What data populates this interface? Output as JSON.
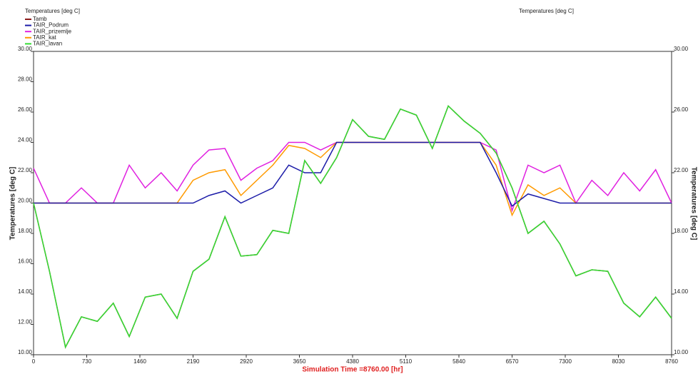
{
  "chart_data": {
    "type": "line",
    "title": "Temperatures  [deg C]",
    "title_right": "Temperatures  [deg C]",
    "y_label": "Temperatures  [deg C]",
    "y2_label": "Temperatures  [deg C]",
    "x_label": "Simulation Time =8760.00 [hr]",
    "xlim": [
      0,
      8760
    ],
    "xticks": [
      0,
      730,
      1460,
      2190,
      2920,
      3650,
      4380,
      5110,
      5840,
      6570,
      7300,
      8030,
      8760
    ],
    "ylim": [
      10,
      30
    ],
    "yticks": [
      {
        "value": 10,
        "label": "10.00"
      },
      {
        "value": 12,
        "label": "12.00"
      },
      {
        "value": 14,
        "label": "14.00"
      },
      {
        "value": 16,
        "label": "16.00"
      },
      {
        "value": 18,
        "label": "18.00"
      },
      {
        "value": 20,
        "label": "20.00"
      },
      {
        "value": 22,
        "label": "22.00"
      },
      {
        "value": 24,
        "label": "24.00"
      },
      {
        "value": 26,
        "label": "26.00"
      },
      {
        "value": 28,
        "label": "28.00"
      },
      {
        "value": 30,
        "label": "30.00"
      }
    ],
    "y2lim": [
      10,
      30
    ],
    "y2ticks": [
      {
        "value": 10,
        "label": "10.00"
      },
      {
        "value": 14,
        "label": "14.00"
      },
      {
        "value": 18,
        "label": "18.00"
      },
      {
        "value": 22,
        "label": "22.00"
      },
      {
        "value": 26,
        "label": "26.00"
      },
      {
        "value": 30,
        "label": "30.00"
      }
    ],
    "x": [
      0,
      219,
      438,
      657,
      876,
      1095,
      1314,
      1533,
      1752,
      1971,
      2190,
      2409,
      2628,
      2847,
      3066,
      3285,
      3504,
      3723,
      3942,
      4161,
      4380,
      4599,
      4818,
      5037,
      5256,
      5475,
      5694,
      5913,
      6132,
      6351,
      6570,
      6789,
      7008,
      7227,
      7446,
      7665,
      7884,
      8103,
      8322,
      8541,
      8760
    ],
    "series": [
      {
        "name": "Tamb",
        "color": "#8b1a1a",
        "values": [
          20,
          15.5,
          10.5,
          12.5,
          12.2,
          13.4,
          11.2,
          13.8,
          14.0,
          12.4,
          15.5,
          16.3,
          19.1,
          16.5,
          16.6,
          18.2,
          18.0,
          22.8,
          21.3,
          23.0,
          25.5,
          24.4,
          24.2,
          26.2,
          25.8,
          23.6,
          26.4,
          25.4,
          24.6,
          23.3,
          21.0,
          18.0,
          18.8,
          17.3,
          15.2,
          15.6,
          15.5,
          13.4,
          12.5,
          13.8,
          12.4
        ]
      },
      {
        "name": "TAIR_Podrum",
        "color": "#1c1ca8",
        "values": [
          20,
          20,
          20,
          20,
          20,
          20,
          20,
          20,
          20,
          20,
          20,
          20.5,
          20.8,
          20,
          20.5,
          21,
          22.5,
          22,
          22,
          24,
          24,
          24,
          24,
          24,
          24,
          24,
          24,
          24,
          24,
          22,
          19.8,
          20.6,
          20.3,
          20,
          20,
          20,
          20,
          20,
          20,
          20,
          20
        ]
      },
      {
        "name": "TAIR_prizemlje",
        "color": "#e020e0",
        "values": [
          22.3,
          20,
          20,
          21,
          20,
          20,
          22.5,
          21,
          22,
          20.8,
          22.5,
          23.5,
          23.6,
          21.5,
          22.3,
          22.8,
          24,
          24,
          23.5,
          24,
          24,
          24,
          24,
          24,
          24,
          24,
          24,
          24,
          24,
          23.5,
          19.5,
          22.5,
          22,
          22.5,
          20,
          21.5,
          20.5,
          22,
          20.8,
          22.2,
          20
        ]
      },
      {
        "name": "TAIR_kat",
        "color": "#ff9a00",
        "values": [
          20,
          20,
          20,
          20,
          20,
          20,
          20,
          20,
          20,
          20,
          21.5,
          22,
          22.2,
          20.5,
          21.5,
          22.5,
          23.8,
          23.6,
          23,
          24,
          24,
          24,
          24,
          24,
          24,
          24,
          24,
          24,
          24,
          22.5,
          19.2,
          21.2,
          20.5,
          21,
          20,
          20,
          20,
          20,
          20,
          20,
          20
        ]
      },
      {
        "name": "TAIR_lavan",
        "color": "#33dd33",
        "values": [
          20,
          15.5,
          10.5,
          12.5,
          12.2,
          13.4,
          11.2,
          13.8,
          14.0,
          12.4,
          15.5,
          16.3,
          19.1,
          16.5,
          16.6,
          18.2,
          18.0,
          22.8,
          21.3,
          23.0,
          25.5,
          24.4,
          24.2,
          26.2,
          25.8,
          23.6,
          26.4,
          25.4,
          24.6,
          23.3,
          21.0,
          18.0,
          18.8,
          17.3,
          15.2,
          15.6,
          15.5,
          13.4,
          12.5,
          13.8,
          12.4
        ]
      }
    ]
  }
}
